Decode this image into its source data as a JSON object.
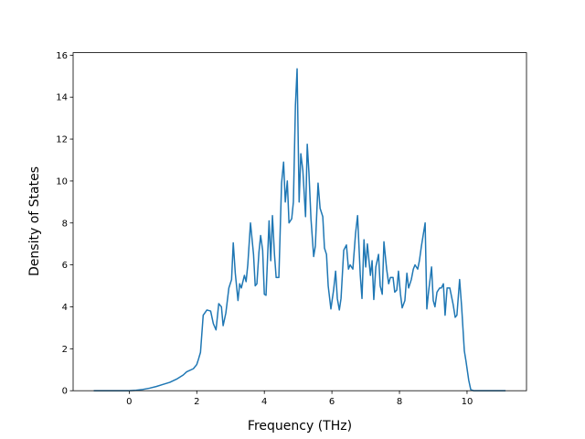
{
  "chart_data": {
    "type": "line",
    "xlabel": "Frequency (THz)",
    "ylabel": "Density of States",
    "xlim": [
      -1.66,
      11.76
    ],
    "ylim": [
      0,
      16.12
    ],
    "xticks": [
      0,
      2,
      4,
      6,
      8,
      10
    ],
    "yticks": [
      0,
      2,
      4,
      6,
      8,
      10,
      12,
      14,
      16
    ],
    "grid": false,
    "series": [
      {
        "color": "#1f77b4",
        "x": [
          -1.05,
          -0.5,
          0,
          0.2,
          0.4,
          0.6,
          0.8,
          1.0,
          1.2,
          1.4,
          1.6,
          1.7,
          1.9,
          2.0,
          2.05,
          2.11,
          2.19,
          2.3,
          2.41,
          2.49,
          2.57,
          2.65,
          2.73,
          2.78,
          2.86,
          2.95,
          3.03,
          3.08,
          3.14,
          3.22,
          3.27,
          3.32,
          3.41,
          3.46,
          3.51,
          3.59,
          3.68,
          3.73,
          3.78,
          3.84,
          3.89,
          3.95,
          4.0,
          4.05,
          4.14,
          4.19,
          4.24,
          4.3,
          4.35,
          4.43,
          4.51,
          4.57,
          4.62,
          4.68,
          4.73,
          4.81,
          4.86,
          4.92,
          4.97,
          5.03,
          5.08,
          5.14,
          5.22,
          5.27,
          5.32,
          5.38,
          5.46,
          5.51,
          5.59,
          5.65,
          5.73,
          5.78,
          5.84,
          5.89,
          5.97,
          6.05,
          6.11,
          6.16,
          6.22,
          6.27,
          6.35,
          6.43,
          6.49,
          6.54,
          6.62,
          6.7,
          6.76,
          6.84,
          6.89,
          6.95,
          7.0,
          7.05,
          7.14,
          7.19,
          7.24,
          7.3,
          7.38,
          7.43,
          7.49,
          7.54,
          7.62,
          7.68,
          7.73,
          7.81,
          7.86,
          7.92,
          7.97,
          8.03,
          8.08,
          8.16,
          8.22,
          8.27,
          8.35,
          8.41,
          8.46,
          8.54,
          8.59,
          8.65,
          8.7,
          8.76,
          8.81,
          8.86,
          8.95,
          9.0,
          9.05,
          9.11,
          9.19,
          9.24,
          9.3,
          9.35,
          9.41,
          9.49,
          9.54,
          9.59,
          9.65,
          9.7,
          9.78,
          9.84,
          9.92,
          9.97,
          10.05,
          10.11,
          10.19,
          11.14
        ],
        "values": [
          0,
          0,
          0,
          0.02,
          0.06,
          0.12,
          0.2,
          0.3,
          0.4,
          0.55,
          0.75,
          0.9,
          1.05,
          1.25,
          1.5,
          1.83,
          3.6,
          3.85,
          3.8,
          3.2,
          2.9,
          4.15,
          4.0,
          3.1,
          3.7,
          4.9,
          5.3,
          7.05,
          5.6,
          4.3,
          5.1,
          4.9,
          5.5,
          5.2,
          6.0,
          8.0,
          6.5,
          5.0,
          5.1,
          6.6,
          7.4,
          6.7,
          4.6,
          4.55,
          8.1,
          6.2,
          8.35,
          6.5,
          5.4,
          5.4,
          9.9,
          10.9,
          9.0,
          10.0,
          8.0,
          8.2,
          9.0,
          13.6,
          15.35,
          9.0,
          11.3,
          10.5,
          8.3,
          11.75,
          10.4,
          8.2,
          6.4,
          6.9,
          9.9,
          8.7,
          8.3,
          6.8,
          6.5,
          5.0,
          3.9,
          4.8,
          5.7,
          4.4,
          3.85,
          4.4,
          6.7,
          6.95,
          5.8,
          6.0,
          5.8,
          7.5,
          8.35,
          5.5,
          4.4,
          7.2,
          5.9,
          7.0,
          5.5,
          6.2,
          4.35,
          5.9,
          6.5,
          5.0,
          4.6,
          7.1,
          5.8,
          5.1,
          5.4,
          5.4,
          4.7,
          4.8,
          5.7,
          4.6,
          3.95,
          4.3,
          5.6,
          4.9,
          5.3,
          5.8,
          6.0,
          5.8,
          6.2,
          6.9,
          7.4,
          8.0,
          3.9,
          4.7,
          5.9,
          4.3,
          4.0,
          4.7,
          4.9,
          4.9,
          5.1,
          3.6,
          4.9,
          4.9,
          4.5,
          4.1,
          3.5,
          3.6,
          5.3,
          4.0,
          1.9,
          1.4,
          0.5,
          0.05,
          0,
          0
        ]
      }
    ]
  }
}
